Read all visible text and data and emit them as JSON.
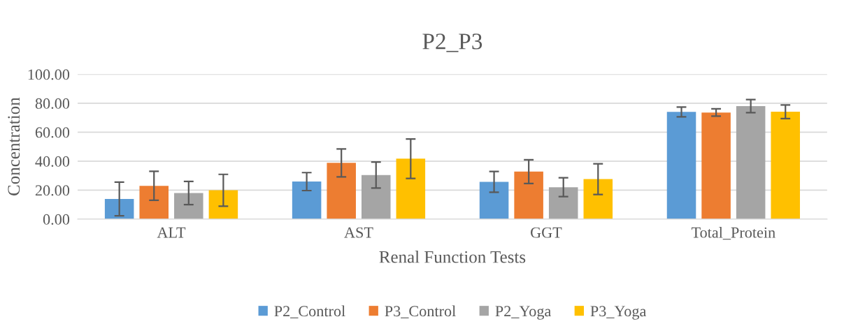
{
  "chart_data": {
    "type": "bar",
    "title": "P2_P3",
    "xlabel": "Renal Function Tests",
    "ylabel": "Concentration",
    "categories": [
      "ALT",
      "AST",
      "GGT",
      "Total_Protein"
    ],
    "series": [
      {
        "name": "P2_Control",
        "color": "#5b9bd5",
        "values": [
          13.9,
          25.9,
          25.7,
          74.0
        ],
        "errors": [
          11.6,
          6.2,
          7.2,
          3.4
        ]
      },
      {
        "name": "P3_Control",
        "color": "#ed7d31",
        "values": [
          23.0,
          38.8,
          32.8,
          73.6
        ],
        "errors": [
          10.0,
          9.6,
          8.2,
          2.5
        ]
      },
      {
        "name": "P2_Yoga",
        "color": "#a5a5a5",
        "values": [
          18.0,
          30.4,
          22.0,
          78.0
        ],
        "errors": [
          8.0,
          9.0,
          6.5,
          4.5
        ]
      },
      {
        "name": "P3_Yoga",
        "color": "#ffc000",
        "values": [
          19.9,
          41.7,
          27.6,
          74.1
        ],
        "errors": [
          11.0,
          13.6,
          10.6,
          4.7
        ]
      }
    ],
    "ylim": [
      0,
      100
    ],
    "yticks": [
      {
        "value": 0,
        "label": "0.00"
      },
      {
        "value": 20,
        "label": "20.00"
      },
      {
        "value": 40,
        "label": "40.00"
      },
      {
        "value": 60,
        "label": "60.00"
      },
      {
        "value": 80,
        "label": "80.00"
      },
      {
        "value": 100,
        "label": "100.00"
      }
    ],
    "grid": "y",
    "legend": "bottom"
  }
}
